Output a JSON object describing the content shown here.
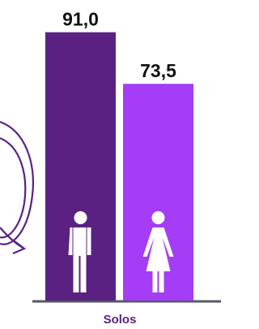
{
  "chart_data": {
    "type": "bar",
    "categories": [
      "Solos"
    ],
    "series": [
      {
        "color": "#5b2182",
        "values": [
          91.0
        ],
        "value_labels": [
          "91,0"
        ]
      },
      {
        "color": "#a43df5",
        "values": [
          73.5
        ],
        "value_labels": [
          "73,5"
        ]
      }
    ],
    "ylim": [
      0,
      100
    ]
  }
}
